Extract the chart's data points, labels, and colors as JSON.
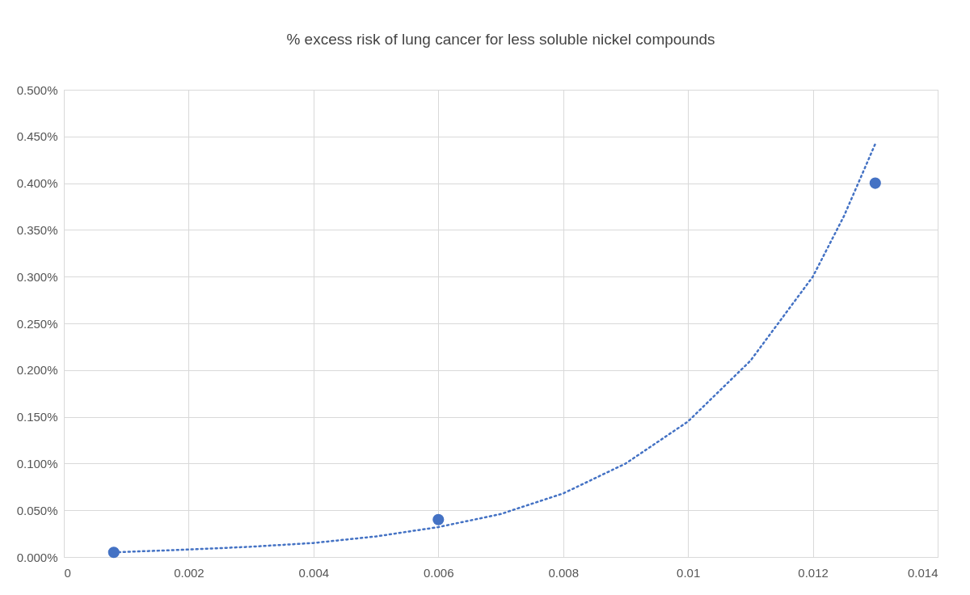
{
  "chart_data": {
    "type": "scatter",
    "title": "% excess risk of lung cancer for less soluble nickel compounds",
    "xlim": [
      0,
      0.014
    ],
    "xticks": [
      0,
      0.002,
      0.004,
      0.006,
      0.008,
      0.01,
      0.012,
      0.014
    ],
    "ylim": [
      0,
      0.5
    ],
    "yticks": [
      {
        "value": 0,
        "label": "0.000%"
      },
      {
        "value": 0.05,
        "label": "0.050%"
      },
      {
        "value": 0.1,
        "label": "0.100%"
      },
      {
        "value": 0.15,
        "label": "0.150%"
      },
      {
        "value": 0.2,
        "label": "0.200%"
      },
      {
        "value": 0.25,
        "label": "0.250%"
      },
      {
        "value": 0.3,
        "label": "0.300%"
      },
      {
        "value": 0.35,
        "label": "0.350%"
      },
      {
        "value": 0.4,
        "label": "0.400%"
      },
      {
        "value": 0.45,
        "label": "0.450%"
      },
      {
        "value": 0.5,
        "label": "0.500%"
      }
    ],
    "grid": true,
    "series": [
      {
        "marker": "circle",
        "color": "#4472c4",
        "x": [
          0.0008,
          0.006,
          0.013
        ],
        "values": [
          0.005,
          0.04,
          0.4
        ]
      },
      {
        "type": "line",
        "line_style": "dotted",
        "color": "#4472c4",
        "x": [
          0.0008,
          0.002,
          0.003,
          0.004,
          0.005,
          0.006,
          0.007,
          0.008,
          0.009,
          0.01,
          0.011,
          0.012,
          0.0125,
          0.013
        ],
        "values": [
          0.005,
          0.008,
          0.011,
          0.015,
          0.022,
          0.032,
          0.046,
          0.068,
          0.1,
          0.145,
          0.21,
          0.3,
          0.365,
          0.442
        ]
      }
    ]
  }
}
